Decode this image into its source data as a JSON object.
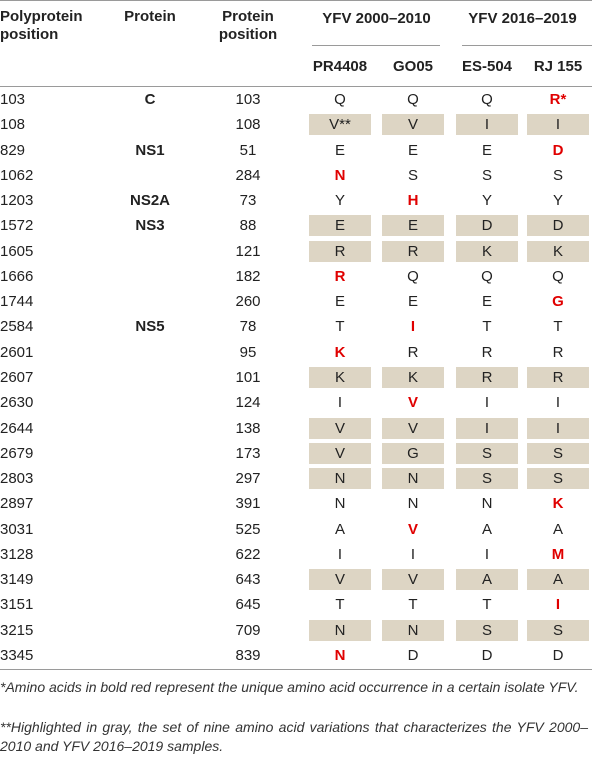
{
  "table": {
    "header": {
      "polyprotein_position": "Polyprotein position",
      "protein": "Protein",
      "protein_position": "Protein position",
      "groups": [
        {
          "title": "YFV 2000–2010",
          "isolates": [
            "PR4408",
            "GO05"
          ]
        },
        {
          "title": "YFV 2016–2019",
          "isolates": [
            "ES-504",
            "RJ 155"
          ]
        }
      ]
    },
    "rows": [
      {
        "polyprotein_position": "103",
        "protein": "C",
        "protein_position": "103",
        "cells": [
          {
            "aa": "Q"
          },
          {
            "aa": "Q"
          },
          {
            "aa": "Q"
          },
          {
            "aa": "R*",
            "bold_red": true
          }
        ]
      },
      {
        "polyprotein_position": "108",
        "protein_position": "108",
        "gray": true,
        "cells": [
          {
            "aa": "V**"
          },
          {
            "aa": "V"
          },
          {
            "aa": "I"
          },
          {
            "aa": "I"
          }
        ]
      },
      {
        "polyprotein_position": "829",
        "protein": "NS1",
        "protein_position": "51",
        "cells": [
          {
            "aa": "E"
          },
          {
            "aa": "E"
          },
          {
            "aa": "E"
          },
          {
            "aa": "D",
            "bold_red": true
          }
        ]
      },
      {
        "polyprotein_position": "1062",
        "protein_position": "284",
        "cells": [
          {
            "aa": "N",
            "bold_red": true
          },
          {
            "aa": "S"
          },
          {
            "aa": "S"
          },
          {
            "aa": "S"
          }
        ]
      },
      {
        "polyprotein_position": "1203",
        "protein": "NS2A",
        "protein_position": "73",
        "cells": [
          {
            "aa": "Y"
          },
          {
            "aa": "H",
            "bold_red": true
          },
          {
            "aa": "Y"
          },
          {
            "aa": "Y"
          }
        ]
      },
      {
        "polyprotein_position": "1572",
        "protein": "NS3",
        "protein_position": "88",
        "gray": true,
        "cells": [
          {
            "aa": "E"
          },
          {
            "aa": "E"
          },
          {
            "aa": "D"
          },
          {
            "aa": "D"
          }
        ]
      },
      {
        "polyprotein_position": "1605",
        "protein_position": "121",
        "gray": true,
        "cells": [
          {
            "aa": "R"
          },
          {
            "aa": "R"
          },
          {
            "aa": "K"
          },
          {
            "aa": "K"
          }
        ]
      },
      {
        "polyprotein_position": "1666",
        "protein_position": "182",
        "cells": [
          {
            "aa": "R",
            "bold_red": true
          },
          {
            "aa": "Q"
          },
          {
            "aa": "Q"
          },
          {
            "aa": "Q"
          }
        ]
      },
      {
        "polyprotein_position": "1744",
        "protein_position": "260",
        "cells": [
          {
            "aa": "E"
          },
          {
            "aa": "E"
          },
          {
            "aa": "E"
          },
          {
            "aa": "G",
            "bold_red": true
          }
        ]
      },
      {
        "polyprotein_position": "2584",
        "protein": "NS5",
        "protein_position": "78",
        "cells": [
          {
            "aa": "T"
          },
          {
            "aa": "I",
            "bold_red": true
          },
          {
            "aa": "T"
          },
          {
            "aa": "T"
          }
        ]
      },
      {
        "polyprotein_position": "2601",
        "protein_position": "95",
        "cells": [
          {
            "aa": "K",
            "bold_red": true
          },
          {
            "aa": "R"
          },
          {
            "aa": "R"
          },
          {
            "aa": "R"
          }
        ]
      },
      {
        "polyprotein_position": "2607",
        "protein_position": "101",
        "gray": true,
        "cells": [
          {
            "aa": "K"
          },
          {
            "aa": "K"
          },
          {
            "aa": "R"
          },
          {
            "aa": "R"
          }
        ]
      },
      {
        "polyprotein_position": "2630",
        "protein_position": "124",
        "cells": [
          {
            "aa": "I"
          },
          {
            "aa": "V",
            "bold_red": true
          },
          {
            "aa": "I"
          },
          {
            "aa": "I"
          }
        ]
      },
      {
        "polyprotein_position": "2644",
        "protein_position": "138",
        "gray": true,
        "cells": [
          {
            "aa": "V"
          },
          {
            "aa": "V"
          },
          {
            "aa": "I"
          },
          {
            "aa": "I"
          }
        ]
      },
      {
        "polyprotein_position": "2679",
        "protein_position": "173",
        "gray": true,
        "cells": [
          {
            "aa": "V"
          },
          {
            "aa": "G"
          },
          {
            "aa": "S"
          },
          {
            "aa": "S"
          }
        ]
      },
      {
        "polyprotein_position": "2803",
        "protein_position": "297",
        "gray": true,
        "cells": [
          {
            "aa": "N"
          },
          {
            "aa": "N"
          },
          {
            "aa": "S"
          },
          {
            "aa": "S"
          }
        ]
      },
      {
        "polyprotein_position": "2897",
        "protein_position": "391",
        "cells": [
          {
            "aa": "N"
          },
          {
            "aa": "N"
          },
          {
            "aa": "N"
          },
          {
            "aa": "K",
            "bold_red": true
          }
        ]
      },
      {
        "polyprotein_position": "3031",
        "protein_position": "525",
        "cells": [
          {
            "aa": "A"
          },
          {
            "aa": "V",
            "bold_red": true
          },
          {
            "aa": "A"
          },
          {
            "aa": "A"
          }
        ]
      },
      {
        "polyprotein_position": "3128",
        "protein_position": "622",
        "cells": [
          {
            "aa": "I"
          },
          {
            "aa": "I"
          },
          {
            "aa": "I"
          },
          {
            "aa": "M",
            "bold_red": true
          }
        ]
      },
      {
        "polyprotein_position": "3149",
        "protein_position": "643",
        "gray": true,
        "cells": [
          {
            "aa": "V"
          },
          {
            "aa": "V"
          },
          {
            "aa": "A"
          },
          {
            "aa": "A"
          }
        ]
      },
      {
        "polyprotein_position": "3151",
        "protein_position": "645",
        "cells": [
          {
            "aa": "T"
          },
          {
            "aa": "T"
          },
          {
            "aa": "T"
          },
          {
            "aa": "I",
            "bold_red": true
          }
        ]
      },
      {
        "polyprotein_position": "3215",
        "protein_position": "709",
        "gray": true,
        "cells": [
          {
            "aa": "N"
          },
          {
            "aa": "N"
          },
          {
            "aa": "S"
          },
          {
            "aa": "S"
          }
        ]
      },
      {
        "polyprotein_position": "3345",
        "protein_position": "839",
        "cells": [
          {
            "aa": "N",
            "bold_red": true
          },
          {
            "aa": "D"
          },
          {
            "aa": "D"
          },
          {
            "aa": "D"
          }
        ]
      }
    ],
    "footnotes": [
      "*Amino acids in bold red represent the unique amino acid occurrence in a certain isolate YFV.",
      "**Highlighted in gray, the set of nine amino acid variations that characterizes the YFV 2000–2010 and YFV 2016–2019 samples."
    ]
  }
}
